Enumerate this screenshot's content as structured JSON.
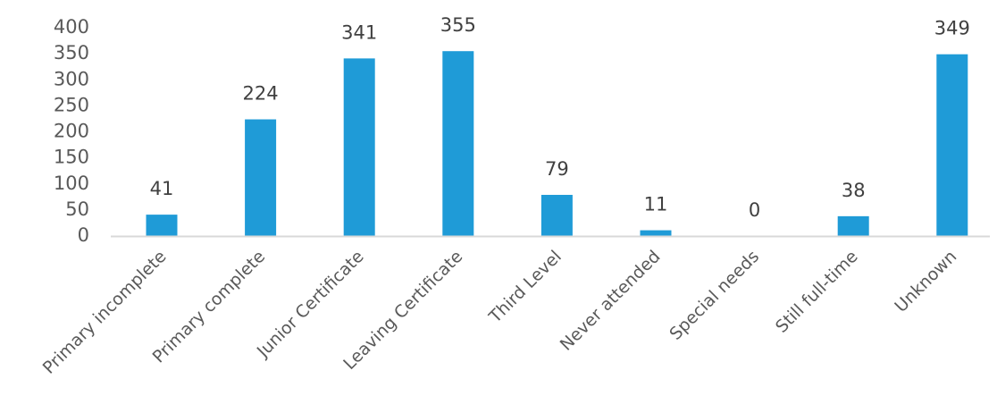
{
  "chart_data": {
    "type": "bar",
    "title": "",
    "xlabel": "",
    "ylabel": "",
    "categories": [
      "Primary incomplete",
      "Primary complete",
      "Junior Certificate",
      "Leaving Certificate",
      "Third Level",
      "Never attended",
      "Special needs",
      "Still full-time",
      "Unknown"
    ],
    "values": [
      41,
      224,
      341,
      355,
      79,
      11,
      0,
      38,
      349
    ],
    "data_labels": [
      "41",
      "224",
      "341",
      "355",
      "79",
      "11",
      "0",
      "38",
      "349"
    ],
    "ylim": [
      0,
      400
    ],
    "yticks": [
      0,
      50,
      100,
      150,
      200,
      250,
      300,
      350,
      400
    ],
    "ytick_labels": [
      "0",
      "50",
      "100",
      "150",
      "200",
      "250",
      "300",
      "350",
      "400"
    ],
    "grid": false,
    "legend": "none",
    "bar_color": "#1f9bd7",
    "axis_color": "#d9d9d9"
  }
}
